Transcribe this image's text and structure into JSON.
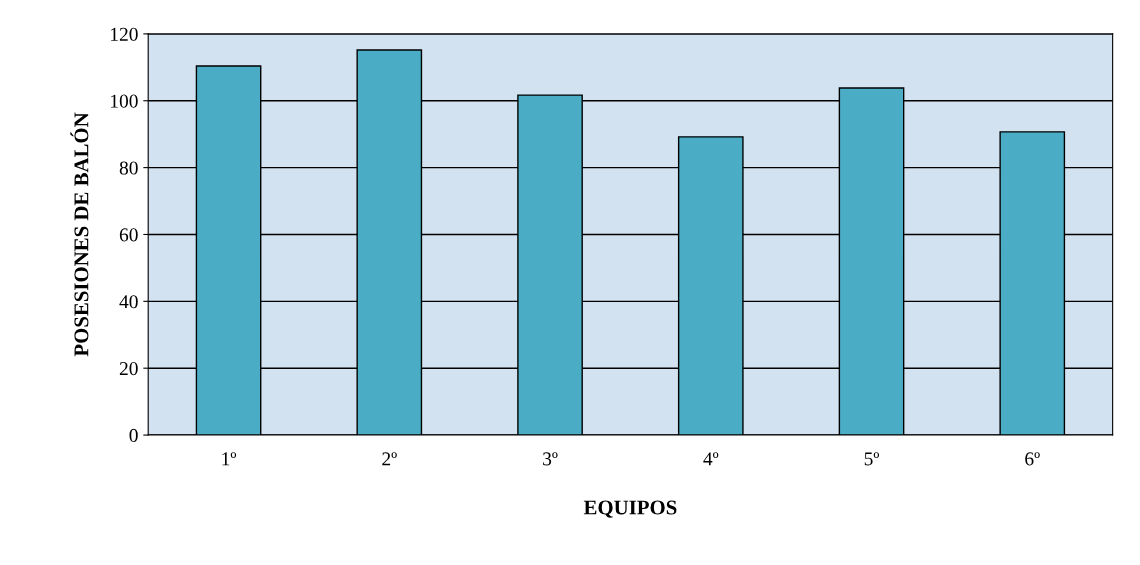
{
  "chart_data": {
    "type": "bar",
    "xlabel": "EQUIPOS",
    "ylabel": "POSESIONES DE BALÓN",
    "categories": [
      "1º",
      "2º",
      "3º",
      "4º",
      "5º",
      "6º"
    ],
    "values": [
      110.4,
      115.2,
      101.7,
      89.2,
      103.8,
      90.7
    ],
    "color": "#4bacc6",
    "ylim": [
      0,
      120
    ],
    "yticks": [
      0,
      20,
      40,
      60,
      80,
      100,
      120
    ],
    "grid": "y",
    "legend": false
  }
}
